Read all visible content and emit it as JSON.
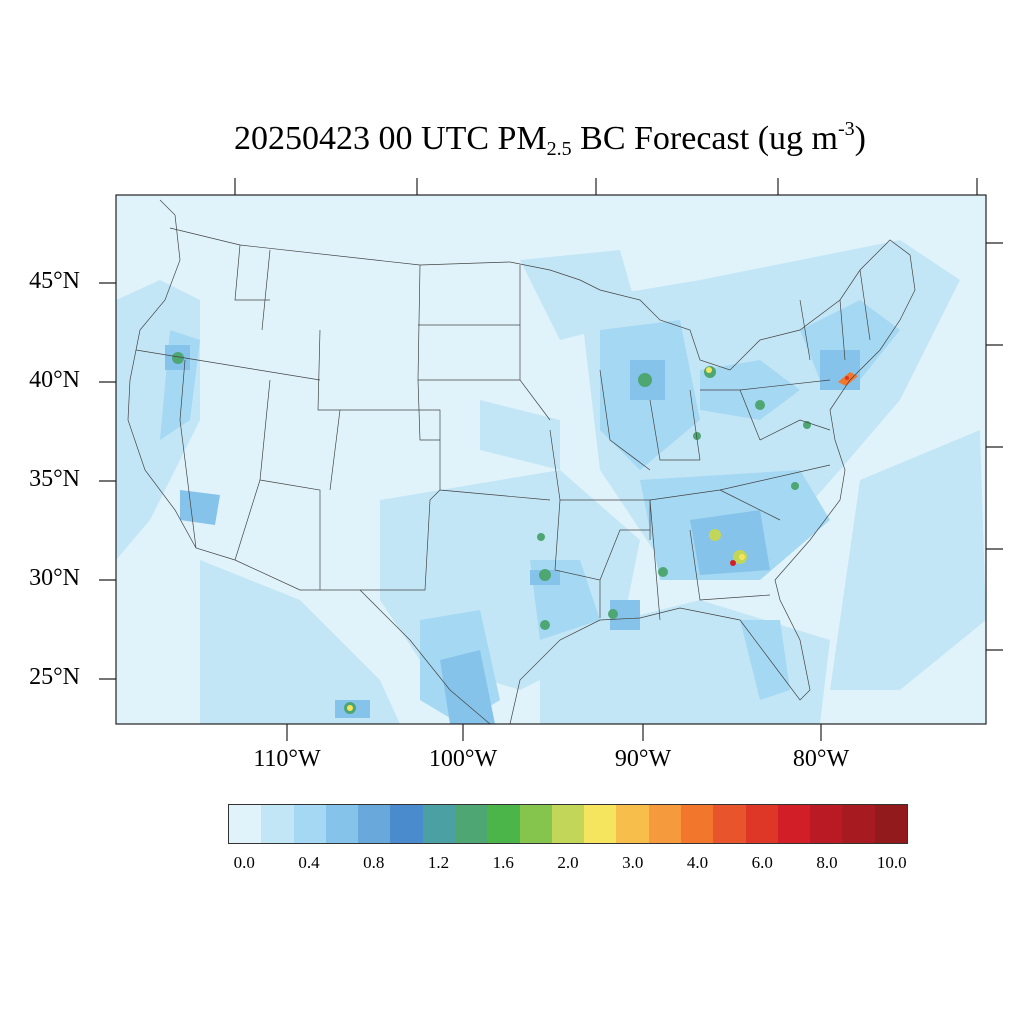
{
  "title": {
    "prefix": "20250423 00 UTC PM",
    "subscript": "2.5",
    "middle": " BC Forecast (ug m",
    "superscript": "-3",
    "suffix": ")"
  },
  "map": {
    "region": "Contiguous United States",
    "lat_labels": [
      "45°N",
      "40°N",
      "35°N",
      "30°N",
      "25°N"
    ],
    "lon_labels": [
      "110°W",
      "100°W",
      "90°W",
      "80°W"
    ],
    "background_color": "#e0f3fb",
    "border_color": "#222222"
  },
  "colorbar": {
    "colors": [
      "#e0f3fb",
      "#c3e6f7",
      "#a4d8f3",
      "#86c3ea",
      "#68a8da",
      "#4a8bcd",
      "#4aa0a3",
      "#4ea672",
      "#4bb54a",
      "#85c54e",
      "#c2d65a",
      "#f5e55e",
      "#f8be4b",
      "#f69b3d",
      "#f2772c",
      "#e8542b",
      "#de3627",
      "#d21f27",
      "#ba1a24",
      "#a71b20",
      "#921a1c"
    ],
    "tick_labels": [
      "0.0",
      "0.4",
      "0.8",
      "1.2",
      "1.6",
      "2.0",
      "3.0",
      "4.0",
      "6.0",
      "8.0",
      "10.0"
    ]
  }
}
